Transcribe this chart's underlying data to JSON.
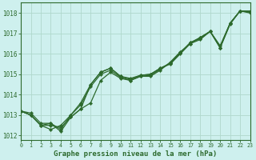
{
  "title": "Graphe pression niveau de la mer (hPa)",
  "background_color": "#cef0ee",
  "grid_color": "#b0d8cc",
  "line_color": "#2d6a2d",
  "spine_color": "#2d6a2d",
  "ylim": [
    1011.8,
    1018.5
  ],
  "xlim": [
    0,
    23
  ],
  "yticks": [
    1012,
    1013,
    1014,
    1015,
    1016,
    1017,
    1018
  ],
  "xticks": [
    0,
    1,
    2,
    3,
    4,
    5,
    6,
    7,
    8,
    9,
    10,
    11,
    12,
    13,
    14,
    15,
    16,
    17,
    18,
    19,
    20,
    21,
    22,
    23
  ],
  "series": [
    [
      1013.2,
      1013.0,
      1012.5,
      1012.6,
      1012.2,
      1012.9,
      1013.3,
      1013.6,
      1014.7,
      1015.1,
      1014.8,
      1014.7,
      1014.9,
      1014.9,
      1015.2,
      1015.6,
      1016.1,
      1016.5,
      1016.8,
      1017.1,
      1016.4,
      1017.5,
      1018.1,
      1018.1
    ],
    [
      1013.2,
      1013.0,
      1012.5,
      1012.3,
      1012.5,
      1013.0,
      1013.5,
      1014.4,
      1015.0,
      1015.2,
      1014.85,
      1014.7,
      1014.9,
      1014.95,
      1015.25,
      1015.55,
      1016.05,
      1016.55,
      1016.75,
      1017.1,
      1016.3,
      1017.45,
      1018.1,
      1018.05
    ],
    [
      1013.2,
      1013.0,
      1012.5,
      1012.5,
      1012.4,
      1012.9,
      1013.3,
      1014.5,
      1015.1,
      1015.3,
      1014.9,
      1014.8,
      1014.95,
      1015.0,
      1015.3,
      1015.55,
      1016.05,
      1016.55,
      1016.8,
      1017.1,
      1016.3,
      1017.5,
      1018.1,
      1018.05
    ],
    [
      1013.2,
      1013.1,
      1012.6,
      1012.6,
      1012.3,
      1013.0,
      1013.6,
      1014.5,
      1015.1,
      1015.3,
      1014.9,
      1014.75,
      1014.95,
      1015.0,
      1015.3,
      1015.5,
      1016.0,
      1016.5,
      1016.7,
      1017.1,
      1016.3,
      1017.5,
      1018.1,
      1018.0
    ]
  ],
  "ylabel_fontsize": 5.5,
  "xlabel_fontsize": 6.5,
  "xtick_fontsize": 4.8,
  "linewidth": 0.9,
  "markersize": 2.2
}
